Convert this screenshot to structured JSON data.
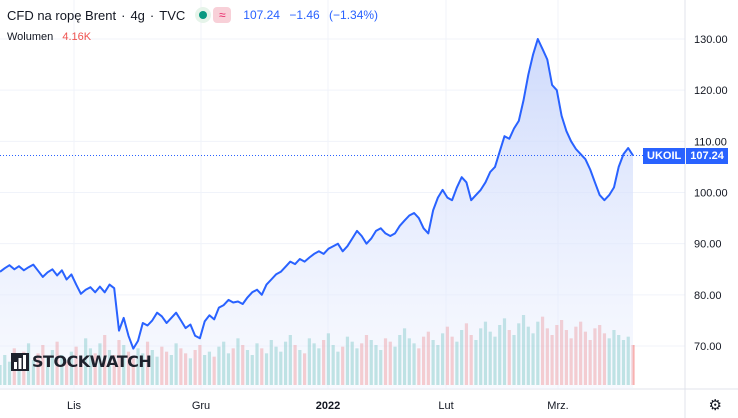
{
  "header": {
    "title": "CFD na ropę Brent",
    "interval": "4g",
    "source": "TVC",
    "last": "107.24",
    "change": "−1.46",
    "change_pct": "(−1.34%)"
  },
  "volume": {
    "label": "Wolumen",
    "value": "4.16K"
  },
  "price_tag": {
    "symbol": "UKOIL",
    "value": "107.24"
  },
  "logo": {
    "text": "STOCKWATCH"
  },
  "colors": {
    "line": "#2962ff",
    "up": "#26a69a",
    "down": "#ef5350",
    "fill": "#e3e9fd"
  },
  "chart_data": {
    "type": "area",
    "yticks": [
      "130.00",
      "120.00",
      "110.00",
      "100.00",
      "90.00",
      "80.00",
      "70.00"
    ],
    "ylim": [
      65,
      135
    ],
    "xticks": [
      "Lis",
      "Gru",
      "2022",
      "Lut",
      "Mrz."
    ],
    "series": [
      {
        "values": [
          84.5,
          85.2,
          85.8,
          85.0,
          85.6,
          84.8,
          85.4,
          85.9,
          84.7,
          83.5,
          84.4,
          85.0,
          83.8,
          84.8,
          83.0,
          84.0,
          82.0,
          80.2,
          81.0,
          81.5,
          80.5,
          81.6,
          80.5,
          82.0,
          81.3,
          73.0,
          75.5,
          72.0,
          69.5,
          71.0,
          74.5,
          74.0,
          75.0,
          76.5,
          75.8,
          74.5,
          75.5,
          76.5,
          75.0,
          73.5,
          74.2,
          72.0,
          71.5,
          74.8,
          76.0,
          75.2,
          77.5,
          78.0,
          79.0,
          78.5,
          78.7,
          78.2,
          79.5,
          80.5,
          81.0,
          80.0,
          82.0,
          83.0,
          84.0,
          84.5,
          85.5,
          86.5,
          86.0,
          87.0,
          86.5,
          87.3,
          88.0,
          88.5,
          88.0,
          89.0,
          89.5,
          90.0,
          88.5,
          89.5,
          91.0,
          92.5,
          91.5,
          90.0,
          91.0,
          92.5,
          93.0,
          92.0,
          91.5,
          92.0,
          93.5,
          94.5,
          95.5,
          96.0,
          95.0,
          93.0,
          92.0,
          96.5,
          99.0,
          100.5,
          99.0,
          98.5,
          101.0,
          103.0,
          102.0,
          98.5,
          99.5,
          100.5,
          102.0,
          104.0,
          105.0,
          108.0,
          111.0,
          110.5,
          112.5,
          114.0,
          118.0,
          123.0,
          127.0,
          130.0,
          128.0,
          126.0,
          121.0,
          120.0,
          115.0,
          112.0,
          110.0,
          108.5,
          107.5,
          106.5,
          104.5,
          102.0,
          99.5,
          98.5,
          99.5,
          101.0,
          105.0,
          107.5,
          108.7,
          107.24
        ],
        "volume": [
          12,
          18,
          14,
          22,
          16,
          20,
          25,
          15,
          19,
          24,
          17,
          21,
          26,
          18,
          14,
          20,
          23,
          17,
          28,
          22,
          19,
          25,
          30,
          21,
          18,
          27,
          24,
          20,
          16,
          22,
          19,
          26,
          21,
          17,
          23,
          20,
          18,
          25,
          22,
          19,
          16,
          21,
          24,
          18,
          20,
          17,
          23,
          26,
          19,
          22,
          28,
          24,
          21,
          18,
          25,
          22,
          19,
          27,
          23,
          20,
          26,
          30,
          24,
          21,
          19,
          28,
          25,
          22,
          27,
          31,
          24,
          20,
          23,
          29,
          26,
          22,
          25,
          30,
          27,
          24,
          21,
          28,
          26,
          23,
          30,
          34,
          28,
          25,
          22,
          29,
          32,
          27,
          24,
          31,
          35,
          29,
          26,
          33,
          37,
          30,
          27,
          34,
          38,
          32,
          29,
          36,
          40,
          33,
          30,
          37,
          42,
          35,
          31,
          38,
          41,
          34,
          30,
          36,
          39,
          33,
          28,
          35,
          38,
          32,
          27,
          34,
          36,
          31,
          28,
          33,
          30,
          27,
          29,
          24
        ]
      }
    ],
    "last_value": 107.24
  }
}
